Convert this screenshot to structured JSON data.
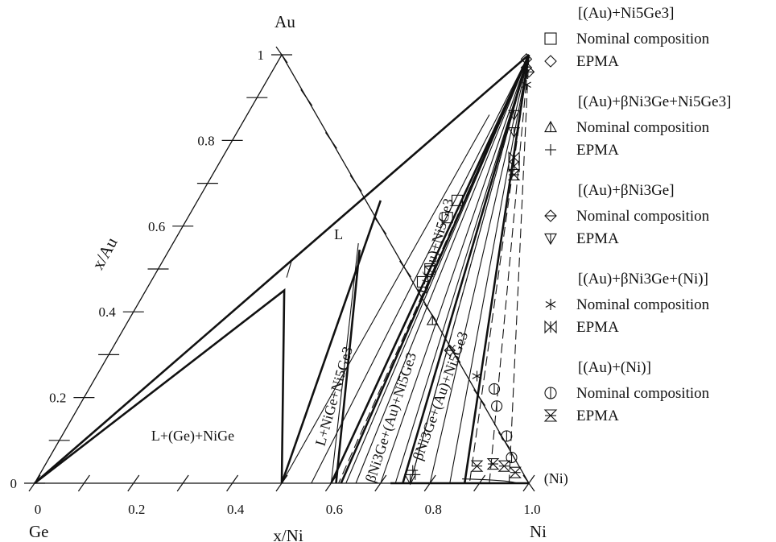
{
  "chart_data": {
    "type": "ternary",
    "vertices": {
      "top": "Au",
      "left": "Ge",
      "right": "Ni"
    },
    "axes": {
      "x_title": "x/Ni",
      "y_title": "x/Au",
      "x_ticks": [
        "0",
        "0.2",
        "0.4",
        "0.6",
        "0.8",
        "1.0"
      ],
      "y_ticks": [
        "0",
        "0.2",
        "0.4",
        "0.6",
        "0.8",
        "1"
      ]
    },
    "phase_boundaries": [
      [
        [
          0.0,
          0.0
        ],
        [
          0.28,
          0.45
        ],
        [
          0.5,
          0.0
        ]
      ],
      [
        [
          0.0,
          0.0
        ],
        [
          0.5,
          1.0
        ]
      ],
      [
        [
          0.37,
          0.66
        ],
        [
          0.5,
          0.0
        ]
      ],
      [
        [
          0.5,
          1.0
        ],
        [
          0.6,
          0.0
        ]
      ],
      [
        [
          0.385,
          0.545
        ],
        [
          0.61,
          0.0
        ]
      ],
      [
        [
          0.5,
          1.0
        ],
        [
          0.62,
          0.0
        ]
      ],
      [
        [
          0.5,
          1.0
        ],
        [
          0.745,
          0.0
        ]
      ],
      [
        [
          0.5,
          1.0
        ],
        [
          0.87,
          0.0
        ]
      ],
      [
        [
          0.72,
          0.0
        ],
        [
          0.87,
          0.0
        ]
      ],
      [
        [
          0.87,
          0.0
        ],
        [
          1.0,
          0.0
        ]
      ]
    ],
    "tie_lines": [
      [
        [
          0.375,
          0.56
        ],
        [
          0.6,
          0.0
        ]
      ],
      [
        [
          0.49,
          0.86
        ],
        [
          0.5,
          0.0
        ]
      ],
      [
        [
          0.5,
          1.0
        ],
        [
          0.56,
          0.0
        ]
      ],
      [
        [
          0.5,
          1.0
        ],
        [
          0.63,
          0.0
        ]
      ],
      [
        [
          0.5,
          1.0
        ],
        [
          0.65,
          0.0
        ]
      ],
      [
        [
          0.5,
          1.0
        ],
        [
          0.7,
          0.0
        ]
      ],
      [
        [
          0.5,
          1.0
        ],
        [
          0.73,
          0.0
        ]
      ],
      [
        [
          0.5,
          1.0
        ],
        [
          0.76,
          0.0
        ]
      ],
      [
        [
          0.5,
          1.0
        ],
        [
          0.8,
          0.0
        ]
      ],
      [
        [
          0.5,
          1.0
        ],
        [
          0.84,
          0.0
        ]
      ],
      [
        [
          0.27,
          0.48
        ],
        [
          0.26,
          0.52
        ]
      ]
    ],
    "dashed_tie_lines": [
      [
        [
          0.5,
          1.0
        ],
        [
          0.615,
          0.0
        ]
      ],
      [
        [
          0.5,
          1.0
        ],
        [
          0.76,
          0.0
        ]
      ],
      [
        [
          0.5,
          1.0
        ],
        [
          0.88,
          0.0
        ]
      ],
      [
        [
          0.5,
          1.0
        ],
        [
          0.92,
          0.0
        ]
      ],
      [
        [
          0.5,
          1.0
        ],
        [
          0.96,
          0.0
        ]
      ]
    ],
    "region_labels": [
      {
        "text": "L",
        "pos": [
          0.33,
          0.57
        ],
        "angle": 0
      },
      {
        "text": "L+(Ge)+NiGe",
        "pos": [
          0.27,
          0.1
        ],
        "angle": 0
      },
      {
        "text": "L+(Au)+Ni5Ge3",
        "pos": [
          0.545,
          0.55
        ],
        "angle": -74
      },
      {
        "text": "L+NiGe+Ni5Ge3",
        "pos": [
          0.515,
          0.2
        ],
        "angle": -74
      },
      {
        "text": "βNi3Ge+(Au)+Ni5Ge3",
        "pos": [
          0.655,
          0.15
        ],
        "angle": -72
      },
      {
        "text": "βNi3Ge+(Au)+Ni5Ge3",
        "pos": [
          0.73,
          0.2
        ],
        "angle": -70
      },
      {
        "text": "(Ni)",
        "pos": [
          1.055,
          0.0
        ],
        "angle": 0
      }
    ],
    "series": [
      {
        "name": "Nominal composition",
        "group": "[(Au)+Ni5Ge3]",
        "marker": "square",
        "points": [
          [
            0.525,
            0.66
          ],
          [
            0.525,
            0.62
          ],
          [
            0.55,
            0.5
          ],
          [
            0.55,
            0.47
          ]
        ]
      },
      {
        "name": "EPMA",
        "group": "[(Au)+Ni5Ge3]",
        "marker": "diamond",
        "points": [
          [
            0.5,
            0.99
          ],
          [
            0.51,
            0.97
          ]
        ]
      },
      {
        "name": "Nominal composition",
        "group": "[(Au)+βNi3Ge+Ni5Ge3]",
        "marker": "triangle",
        "points": [
          [
            0.615,
            0.38
          ]
        ]
      },
      {
        "name": "EPMA",
        "group": "[(Au)+βNi3Ge+Ni5Ge3]",
        "marker": "plus",
        "points": [
          [
            0.75,
            0.03
          ],
          [
            0.76,
            0.02
          ]
        ]
      },
      {
        "name": "Nominal composition",
        "group": "[(Au)+βNi3Ge]",
        "marker": "diamond-half",
        "points": [
          [
            0.685,
            0.31
          ],
          [
            0.52,
            0.96
          ]
        ]
      },
      {
        "name": "EPMA",
        "group": "[(Au)+βNi3Ge]",
        "marker": "triangle-down",
        "points": [
          [
            0.54,
            0.86
          ],
          [
            0.56,
            0.82
          ],
          [
            0.755,
            0.01
          ]
        ]
      },
      {
        "name": "Nominal composition",
        "group": "[(Au)+βNi3Ge+(Ni)]",
        "marker": "asterisk",
        "points": [
          [
            0.77,
            0.25
          ],
          [
            0.53,
            0.93
          ]
        ]
      },
      {
        "name": "EPMA",
        "group": "[(Au)+βNi3Ge+(Ni)]",
        "marker": "bowtie",
        "points": [
          [
            0.59,
            0.76
          ],
          [
            0.6,
            0.74
          ]
        ]
      },
      {
        "name": "Nominal composition",
        "group": "[(Au)+(Ni)]",
        "marker": "circle",
        "points": [
          [
            0.82,
            0.22
          ],
          [
            0.845,
            0.18
          ],
          [
            0.9,
            0.11
          ],
          [
            0.935,
            0.06
          ]
        ]
      },
      {
        "name": "EPMA",
        "group": "[(Au)+(Ni)]",
        "marker": "hourglass",
        "points": [
          [
            0.875,
            0.04
          ],
          [
            0.905,
            0.045
          ],
          [
            0.93,
            0.04
          ],
          [
            0.96,
            0.025
          ],
          [
            0.61,
            0.72
          ]
        ]
      }
    ],
    "legend": [
      {
        "title": "[(Au)+Ni5Ge3]",
        "items": [
          {
            "marker": "square",
            "label": "Nominal composition"
          },
          {
            "marker": "diamond",
            "label": "EPMA"
          }
        ]
      },
      {
        "title": "[(Au)+βNi3Ge+Ni5Ge3]",
        "items": [
          {
            "marker": "triangle",
            "label": "Nominal composition"
          },
          {
            "marker": "plus",
            "label": "EPMA"
          }
        ]
      },
      {
        "title": "[(Au)+βNi3Ge]",
        "items": [
          {
            "marker": "diamond-half",
            "label": "Nominal composition"
          },
          {
            "marker": "triangle-down",
            "label": "EPMA"
          }
        ]
      },
      {
        "title": "[(Au)+βNi3Ge+(Ni)]",
        "items": [
          {
            "marker": "asterisk",
            "label": "Nominal composition"
          },
          {
            "marker": "bowtie",
            "label": "EPMA"
          }
        ]
      },
      {
        "title": "[(Au)+(Ni)]",
        "items": [
          {
            "marker": "circle",
            "label": "Nominal composition"
          },
          {
            "marker": "hourglass",
            "label": "EPMA"
          }
        ]
      }
    ],
    "legend_placement": "right",
    "grid": false
  }
}
